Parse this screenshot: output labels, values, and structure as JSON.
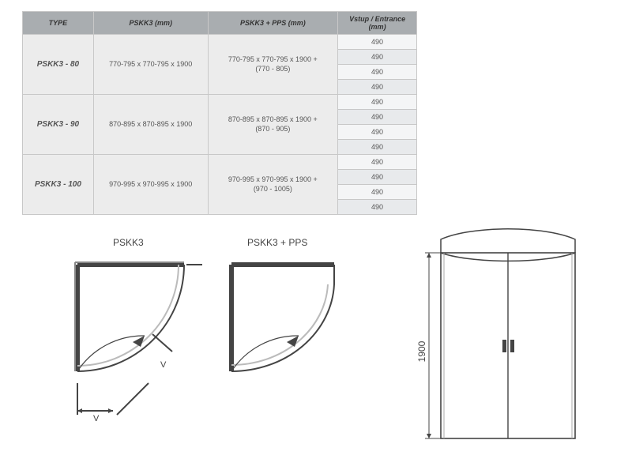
{
  "table": {
    "headers": [
      "TYPE",
      "PSKK3 (mm)",
      "PSKK3 + PPS (mm)",
      "Vstup / Entrance (mm)"
    ],
    "groups": [
      {
        "type": "PSKK3 - 80",
        "dim": "770-795 x 770-795 x 1900",
        "dim_pps": "770-795 x 770-795 x 1900 +",
        "dim_pps_sub": "(770 - 805)",
        "entrance": [
          "490",
          "490",
          "490",
          "490"
        ]
      },
      {
        "type": "PSKK3 - 90",
        "dim": "870-895 x 870-895 x 1900",
        "dim_pps": "870-895 x 870-895 x 1900 +",
        "dim_pps_sub": "(870 - 905)",
        "entrance": [
          "490",
          "490",
          "490",
          "490"
        ]
      },
      {
        "type": "PSKK3 - 100",
        "dim": "970-995 x 970-995 x 1900",
        "dim_pps": "970-995 x 970-995 x 1900 +",
        "dim_pps_sub": "(970 - 1005)",
        "entrance": [
          "490",
          "490",
          "490",
          "490"
        ]
      }
    ]
  },
  "diagrams": {
    "label_left": "PSKK3",
    "label_mid": "PSKK3 + PPS",
    "height_label": "1900",
    "v_label": "V"
  },
  "colors": {
    "header_bg": "#a9adb0",
    "cell_bg_a": "#f4f5f6",
    "cell_bg_b": "#e8eaec",
    "type_bg": "#ececec",
    "border": "#c8c8c8",
    "line": "#444444"
  }
}
